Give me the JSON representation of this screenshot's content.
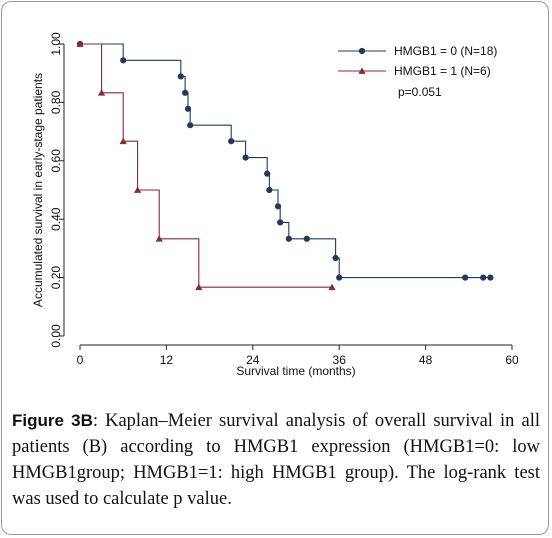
{
  "chart_data": {
    "type": "line",
    "step": true,
    "xlabel": "Survival time (months)",
    "ylabel": "Accumulated survival in early-stage patients",
    "xlim": [
      0,
      60
    ],
    "ylim": [
      0,
      1
    ],
    "xticks": [
      0,
      12,
      24,
      36,
      48,
      60
    ],
    "yticks": [
      "0.00",
      "0.20",
      "0.40",
      "0.60",
      "0.80",
      "1.00"
    ],
    "annotation": "p=0.051",
    "legend_position": "top-right",
    "series": [
      {
        "name": "HMGB1 = 0 (N=18)",
        "color": "#1f3a5c",
        "marker": "circle",
        "steps": [
          [
            0,
            1.0
          ],
          [
            6,
            0.944
          ],
          [
            14,
            0.889
          ],
          [
            14.6,
            0.833
          ],
          [
            15,
            0.778
          ],
          [
            15.3,
            0.722
          ],
          [
            21,
            0.667
          ],
          [
            23,
            0.611
          ],
          [
            26,
            0.556
          ],
          [
            26.3,
            0.5
          ],
          [
            27.5,
            0.444
          ],
          [
            27.8,
            0.389
          ],
          [
            29,
            0.333
          ],
          [
            35.5,
            0.267
          ],
          [
            36,
            0.2
          ]
        ],
        "end_x": 57,
        "markers": [
          [
            0,
            1.0
          ],
          [
            6,
            0.944
          ],
          [
            14,
            0.889
          ],
          [
            14.6,
            0.833
          ],
          [
            15,
            0.778
          ],
          [
            15.3,
            0.722
          ],
          [
            21,
            0.667
          ],
          [
            23,
            0.611
          ],
          [
            26,
            0.556
          ],
          [
            26.3,
            0.5
          ],
          [
            27.5,
            0.444
          ],
          [
            27.8,
            0.389
          ],
          [
            29,
            0.333
          ],
          [
            31.5,
            0.333
          ],
          [
            35.5,
            0.267
          ],
          [
            36,
            0.2
          ],
          [
            53.5,
            0.2
          ],
          [
            56,
            0.2
          ],
          [
            57,
            0.2
          ]
        ]
      },
      {
        "name": "HMGB1 = 1 (N=6)",
        "color": "#8b2a2e",
        "marker": "triangle",
        "steps": [
          [
            0,
            1.0
          ],
          [
            3,
            0.833
          ],
          [
            6,
            0.667
          ],
          [
            8,
            0.5
          ],
          [
            11,
            0.333
          ],
          [
            16.5,
            0.167
          ]
        ],
        "end_x": 35,
        "markers": [
          [
            0,
            1.0
          ],
          [
            3,
            0.833
          ],
          [
            6,
            0.667
          ],
          [
            8,
            0.5
          ],
          [
            11,
            0.333
          ],
          [
            16.5,
            0.167
          ],
          [
            35,
            0.167
          ]
        ]
      }
    ]
  },
  "caption": {
    "label": "Figure 3B",
    "text": ": Kaplan–Meier survival analysis of overall survival in all patients (B) according to HMGB1 expression (HMGB1=0: low HMGB1group; HMGB1=1: high HMGB1 group). The log-rank test was used to calculate p value."
  }
}
